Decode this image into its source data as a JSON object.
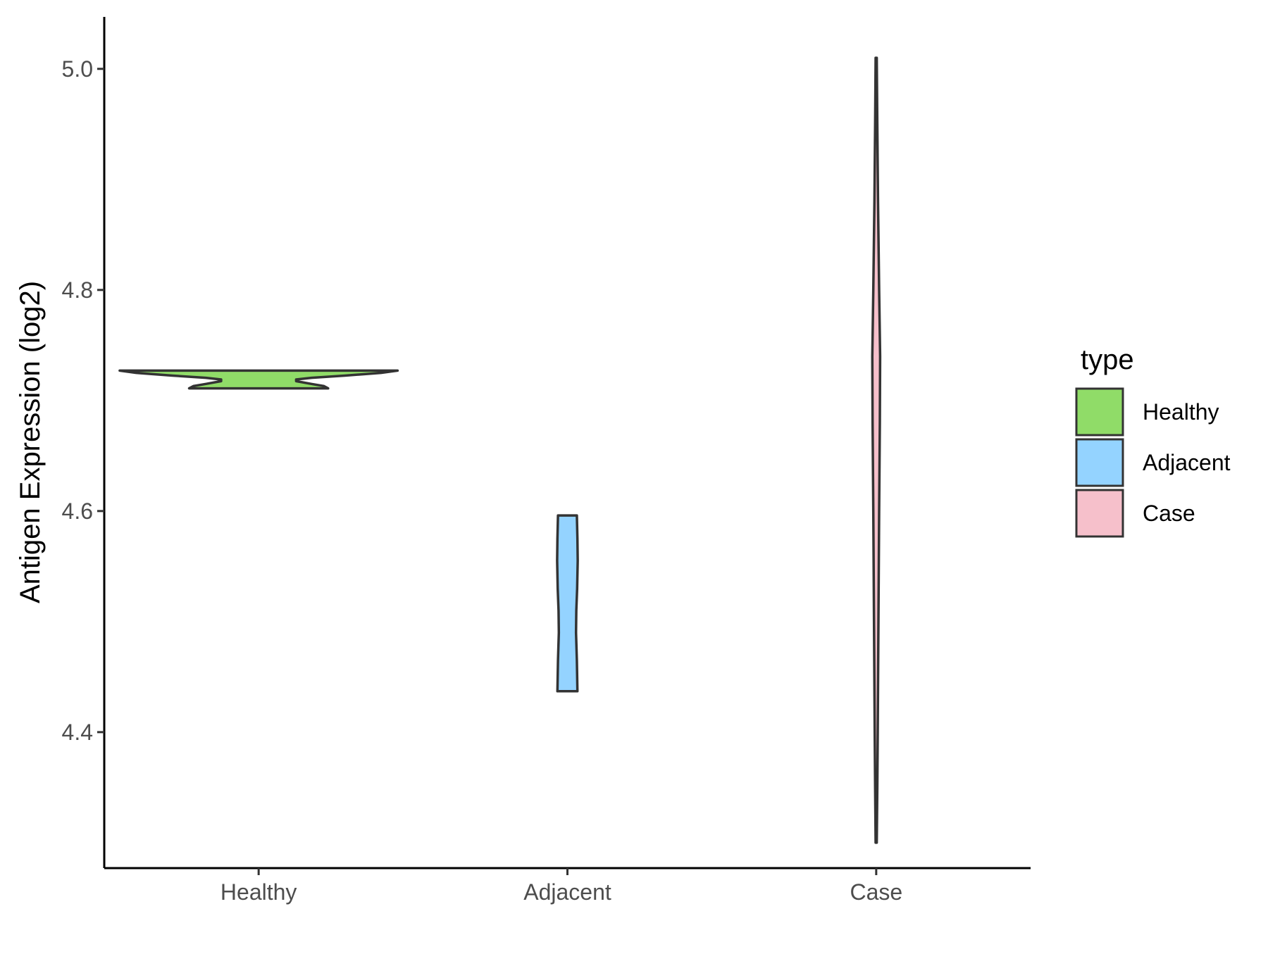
{
  "chart_data": {
    "type": "violin",
    "title": "",
    "xlabel": "",
    "ylabel": "Antigen Expression (log2)",
    "ylim": [
      4.277,
      5.047
    ],
    "yticks": [
      4.4,
      4.6,
      4.8,
      5.0
    ],
    "ytick_labels": [
      "4.4",
      "4.6",
      "4.8",
      "5.0"
    ],
    "categories": [
      "Healthy",
      "Adjacent",
      "Case"
    ],
    "grid": false,
    "legend": {
      "title": "type",
      "position": "right",
      "items": [
        {
          "label": "Healthy",
          "color": "#90DC68"
        },
        {
          "label": "Adjacent",
          "color": "#94D3FF"
        },
        {
          "label": "Case",
          "color": "#F6C0CB"
        }
      ]
    },
    "series": [
      {
        "name": "Healthy",
        "color": "#90DC68",
        "min": 4.711,
        "max": 4.727,
        "density": [
          {
            "y": 4.711,
            "w": 0.5
          },
          {
            "y": 4.713,
            "w": 0.47
          },
          {
            "y": 4.715,
            "w": 0.38
          },
          {
            "y": 4.7175,
            "w": 0.27
          },
          {
            "y": 4.719,
            "w": 0.27
          },
          {
            "y": 4.7205,
            "w": 0.38
          },
          {
            "y": 4.7225,
            "w": 0.62
          },
          {
            "y": 4.725,
            "w": 0.88
          },
          {
            "y": 4.727,
            "w": 1.0
          }
        ]
      },
      {
        "name": "Adjacent",
        "color": "#94D3FF",
        "min": 4.437,
        "max": 4.596,
        "density": [
          {
            "y": 4.437,
            "w": 0.072
          },
          {
            "y": 4.465,
            "w": 0.068
          },
          {
            "y": 4.49,
            "w": 0.062
          },
          {
            "y": 4.51,
            "w": 0.064
          },
          {
            "y": 4.53,
            "w": 0.07
          },
          {
            "y": 4.555,
            "w": 0.074
          },
          {
            "y": 4.575,
            "w": 0.072
          },
          {
            "y": 4.596,
            "w": 0.068
          }
        ]
      },
      {
        "name": "Case",
        "color": "#F6C0CB",
        "min": 4.3,
        "max": 5.01,
        "density": [
          {
            "y": 4.3,
            "w": 0.004
          },
          {
            "y": 4.35,
            "w": 0.008
          },
          {
            "y": 4.4,
            "w": 0.011
          },
          {
            "y": 4.5,
            "w": 0.016
          },
          {
            "y": 4.6,
            "w": 0.021
          },
          {
            "y": 4.68,
            "w": 0.026
          },
          {
            "y": 4.74,
            "w": 0.028
          },
          {
            "y": 4.8,
            "w": 0.021
          },
          {
            "y": 4.88,
            "w": 0.013
          },
          {
            "y": 4.95,
            "w": 0.008
          },
          {
            "y": 5.01,
            "w": 0.004
          }
        ]
      }
    ]
  }
}
